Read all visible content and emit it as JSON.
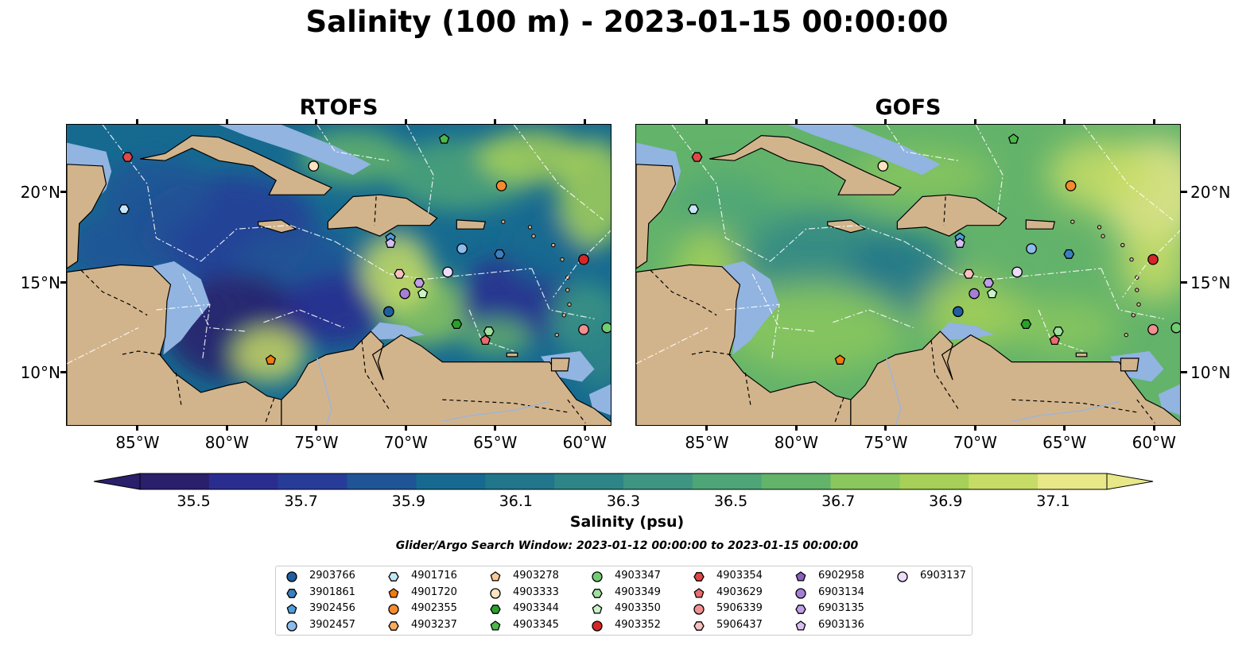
{
  "title": "Salinity (100 m) - 2023-01-15 00:00:00",
  "panels": [
    {
      "title": "RTOFS",
      "name": "rtofs"
    },
    {
      "title": "GOFS",
      "name": "gofs"
    }
  ],
  "lon_labels": [
    "85°W",
    "80°W",
    "75°W",
    "70°W",
    "65°W",
    "60°W"
  ],
  "lat_labels": [
    "20°N",
    "15°N",
    "10°N"
  ],
  "colorbar": {
    "label": "Salinity (psu)",
    "ticks": [
      "35.5",
      "35.7",
      "35.9",
      "36.1",
      "36.3",
      "36.5",
      "36.7",
      "36.9",
      "37.1"
    ],
    "colors": [
      "#2a1f6b",
      "#2a2d8f",
      "#273c98",
      "#1f5497",
      "#166a90",
      "#21768b",
      "#2d8587",
      "#3d9582",
      "#4ea577",
      "#63b36b",
      "#8ac75d",
      "#a6d058",
      "#c6dc66",
      "#e8e889"
    ]
  },
  "search_window": "Glider/Argo Search Window: 2023-01-12 00:00:00 to 2023-01-15 00:00:00",
  "colors": {
    "land": "#d2b48c",
    "shelf": "#91b4e1",
    "deep_low_sal": "#2a1f6b",
    "route": "#ffffff"
  },
  "legend": [
    {
      "id": "2903766",
      "marker": "circle",
      "color": "#1f5fa0"
    },
    {
      "id": "3901861",
      "marker": "hexagon",
      "color": "#3a7fc0"
    },
    {
      "id": "3902456",
      "marker": "pentagon",
      "color": "#4f9fdc"
    },
    {
      "id": "3902457",
      "marker": "circle",
      "color": "#8cbcec"
    },
    {
      "id": "4901716",
      "marker": "hexagon",
      "color": "#c6e6f7"
    },
    {
      "id": "4901720",
      "marker": "pentagon",
      "color": "#f07b10"
    },
    {
      "id": "4902355",
      "marker": "circle",
      "color": "#f58b2e"
    },
    {
      "id": "4903237",
      "marker": "hexagon",
      "color": "#f9ab5f"
    },
    {
      "id": "4903278",
      "marker": "pentagon",
      "color": "#fbc997"
    },
    {
      "id": "4903333",
      "marker": "circle",
      "color": "#fde2c2"
    },
    {
      "id": "4903344",
      "marker": "hexagon",
      "color": "#2ca02c"
    },
    {
      "id": "4903345",
      "marker": "pentagon",
      "color": "#4cb84c"
    },
    {
      "id": "4903347",
      "marker": "circle",
      "color": "#72cc72"
    },
    {
      "id": "4903349",
      "marker": "hexagon",
      "color": "#9fe09f"
    },
    {
      "id": "4903350",
      "marker": "pentagon",
      "color": "#c9f2c9"
    },
    {
      "id": "4903352",
      "marker": "circle",
      "color": "#d62728"
    },
    {
      "id": "4903354",
      "marker": "hexagon",
      "color": "#e04848"
    },
    {
      "id": "4903629",
      "marker": "pentagon",
      "color": "#ea6c6c"
    },
    {
      "id": "5906339",
      "marker": "circle",
      "color": "#f29090"
    },
    {
      "id": "5906437",
      "marker": "hexagon",
      "color": "#f8c0c0"
    },
    {
      "id": "6902958",
      "marker": "pentagon",
      "color": "#8c5fc0"
    },
    {
      "id": "6903134",
      "marker": "circle",
      "color": "#a57fd6"
    },
    {
      "id": "6903135",
      "marker": "hexagon",
      "color": "#bf9fe6"
    },
    {
      "id": "6903136",
      "marker": "pentagon",
      "color": "#d7bff2"
    },
    {
      "id": "6903137",
      "marker": "circle",
      "color": "#ecdcfb"
    }
  ],
  "floats": [
    {
      "id": "4903354",
      "lon": -85.6,
      "lat": 22.0
    },
    {
      "id": "4901716",
      "lon": -85.8,
      "lat": 19.1
    },
    {
      "id": "4903333",
      "lon": -75.2,
      "lat": 21.5
    },
    {
      "id": "4903345",
      "lon": -67.9,
      "lat": 23.0
    },
    {
      "id": "4902355",
      "lon": -64.7,
      "lat": 20.4
    },
    {
      "id": "3902456",
      "lon": -70.9,
      "lat": 17.5
    },
    {
      "id": "6903136",
      "lon": -70.9,
      "lat": 17.2
    },
    {
      "id": "3902457",
      "lon": -66.9,
      "lat": 16.9
    },
    {
      "id": "3901861",
      "lon": -64.8,
      "lat": 16.6
    },
    {
      "id": "4903352",
      "lon": -60.1,
      "lat": 16.3
    },
    {
      "id": "5906437",
      "lon": -70.4,
      "lat": 15.5
    },
    {
      "id": "6903137",
      "lon": -67.7,
      "lat": 15.6
    },
    {
      "id": "6903135",
      "lon": -69.3,
      "lat": 15.0
    },
    {
      "id": "6903134",
      "lon": -70.1,
      "lat": 14.4
    },
    {
      "id": "4903350",
      "lon": -69.1,
      "lat": 14.4
    },
    {
      "id": "2903766",
      "lon": -71.0,
      "lat": 13.4
    },
    {
      "id": "4903344",
      "lon": -67.2,
      "lat": 12.7
    },
    {
      "id": "4903349",
      "lon": -65.4,
      "lat": 12.3
    },
    {
      "id": "4903629",
      "lon": -65.6,
      "lat": 11.8
    },
    {
      "id": "5906339",
      "lon": -60.1,
      "lat": 12.4
    },
    {
      "id": "4903347",
      "lon": -58.8,
      "lat": 12.5
    },
    {
      "id": "4901720",
      "lon": -77.6,
      "lat": 10.7
    }
  ]
}
